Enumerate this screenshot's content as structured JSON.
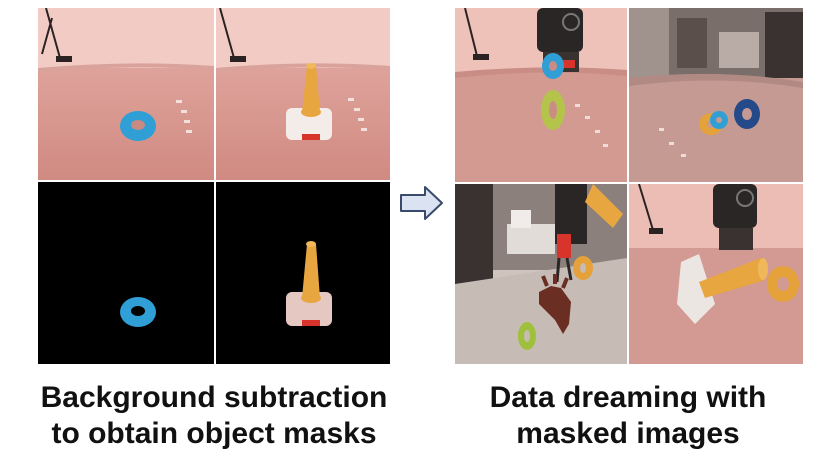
{
  "left_caption": {
    "line1": "Background subtraction",
    "line2": "to obtain object masks"
  },
  "right_caption": {
    "line1": "Data dreaming with",
    "line2": "masked images"
  },
  "colors": {
    "floor": "#d79a92",
    "wall": "#f0c2bb",
    "mask_bg": "#000000",
    "ring_blue": "#2f9fd6",
    "ring_green": "#9fc03a",
    "ring_orange": "#e5a23a",
    "cone_orange": "#e8a640",
    "gripper_dark": "#2b2626",
    "arrow_fill": "#dbe3f2",
    "arrow_stroke": "#3a4a6a"
  }
}
